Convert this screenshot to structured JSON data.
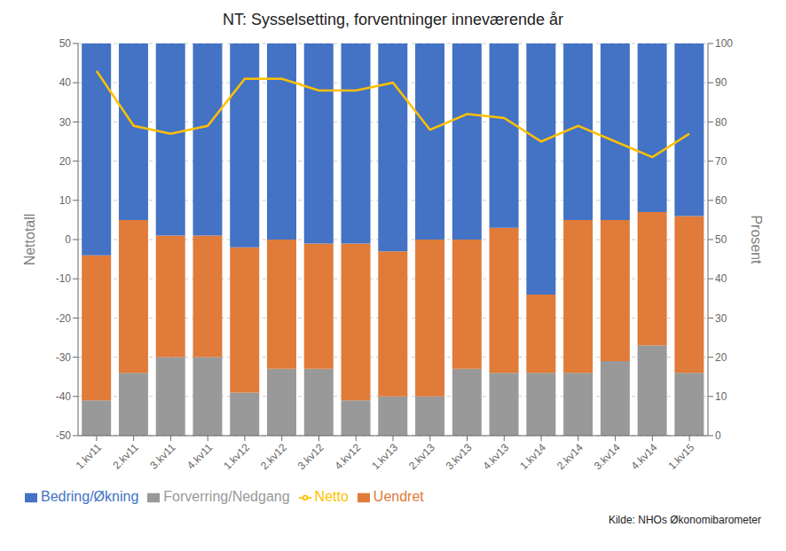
{
  "chart_data": {
    "type": "bar",
    "title": "NT: Sysselsetting, forventninger inneværende år",
    "categories": [
      "1.kv11",
      "2.kv11",
      "3.kv11",
      "4.kv11",
      "1.kv12",
      "2.kv12",
      "3.kv12",
      "4.kv12",
      "1.kv13",
      "2.kv13",
      "3.kv13",
      "4.kv13",
      "1.kv14",
      "2.kv14",
      "3.kv14",
      "4.kv14",
      "1.kv15"
    ],
    "ylabel": "Nettotall",
    "y2label": "Prosent",
    "series": [
      {
        "name": "Forverring/Nedgang",
        "color": "#999999",
        "axis": "y2",
        "values": [
          9,
          16,
          20,
          20,
          11,
          17,
          17,
          9,
          10,
          10,
          17,
          16,
          16,
          16,
          19,
          23,
          16
        ]
      },
      {
        "name": "Uendret",
        "color": "#E07B39",
        "axis": "y2",
        "values": [
          37,
          39,
          31,
          31,
          37,
          33,
          32,
          40,
          37,
          40,
          33,
          37,
          20,
          39,
          36,
          34,
          40
        ]
      },
      {
        "name": "Bedring/Økning",
        "color": "#4472C4",
        "axis": "y2",
        "values": [
          54,
          45,
          49,
          49,
          52,
          50,
          51,
          51,
          53,
          50,
          50,
          47,
          64,
          45,
          45,
          43,
          44
        ]
      },
      {
        "name": "Netto",
        "type": "line",
        "color": "#FFC000",
        "values": [
          43,
          29,
          27,
          29,
          41,
          41,
          38,
          38,
          40,
          28,
          32,
          31,
          25,
          29,
          25,
          21,
          27
        ]
      }
    ],
    "ylim": [
      -50,
      50
    ],
    "yticks": [
      -50,
      -40,
      -30,
      -20,
      -10,
      0,
      10,
      20,
      30,
      40,
      50
    ],
    "y2lim": [
      0,
      100
    ],
    "y2ticks": [
      0,
      10,
      20,
      30,
      40,
      50,
      60,
      70,
      80,
      90,
      100
    ],
    "stacked": true,
    "grid": true,
    "legend": "bottom",
    "annotations": [
      "Kilde: NHOs Økonomibarometer"
    ]
  }
}
